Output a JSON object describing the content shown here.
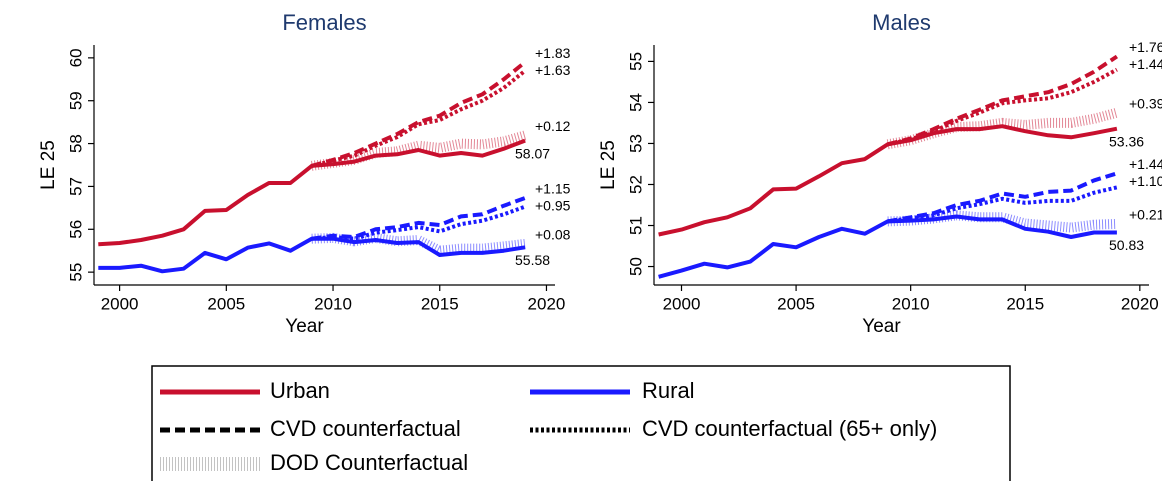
{
  "chart_data": [
    {
      "type": "line",
      "title": "Females",
      "x_label": "Year",
      "y_label": "LE 25",
      "x": [
        1999,
        2000,
        2001,
        2002,
        2003,
        2004,
        2005,
        2006,
        2007,
        2008,
        2009,
        2010,
        2011,
        2012,
        2013,
        2014,
        2015,
        2016,
        2017,
        2018,
        2019
      ],
      "xlim": [
        1998.8,
        2020.4
      ],
      "xticks": [
        2000,
        2005,
        2010,
        2015,
        2020
      ],
      "ylim": [
        54.7,
        60.3
      ],
      "yticks": [
        55,
        56,
        57,
        58,
        59,
        60
      ],
      "series": [
        {
          "color": "#c8102e",
          "dash": "solid",
          "end_value_label": true,
          "values": [
            55.65,
            55.68,
            55.75,
            55.85,
            56.0,
            56.43,
            56.45,
            56.8,
            57.08,
            57.08,
            57.48,
            57.52,
            57.58,
            57.72,
            57.75,
            57.85,
            57.72,
            57.78,
            57.72,
            57.88,
            58.07
          ]
        },
        {
          "color": "#c8102e",
          "dash": "dashed",
          "annotation": "+1.83",
          "values": [
            null,
            null,
            null,
            null,
            null,
            null,
            null,
            null,
            null,
            null,
            57.48,
            57.62,
            57.78,
            58.0,
            58.22,
            58.5,
            58.65,
            58.95,
            59.15,
            59.5,
            59.9
          ]
        },
        {
          "color": "#c8102e",
          "dash": "dotted",
          "annotation": "+1.63",
          "values": [
            null,
            null,
            null,
            null,
            null,
            null,
            null,
            null,
            null,
            null,
            57.48,
            57.6,
            57.72,
            57.95,
            58.15,
            58.45,
            58.55,
            58.8,
            59.0,
            59.3,
            59.7
          ]
        },
        {
          "color": "#c8102e",
          "dash": "hatched",
          "annotation": "+0.12",
          "values": [
            null,
            null,
            null,
            null,
            null,
            null,
            null,
            null,
            null,
            null,
            57.48,
            57.55,
            57.62,
            57.78,
            57.82,
            57.95,
            57.9,
            58.0,
            57.98,
            58.05,
            58.19
          ]
        },
        {
          "color": "#1a1aff",
          "dash": "solid",
          "end_value_label": true,
          "values": [
            55.1,
            55.1,
            55.15,
            55.02,
            55.08,
            55.45,
            55.3,
            55.57,
            55.67,
            55.5,
            55.78,
            55.78,
            55.7,
            55.75,
            55.68,
            55.7,
            55.4,
            55.45,
            55.45,
            55.5,
            55.58
          ]
        },
        {
          "color": "#1a1aff",
          "dash": "dashed",
          "annotation": "+1.15",
          "values": [
            null,
            null,
            null,
            null,
            null,
            null,
            null,
            null,
            null,
            null,
            55.78,
            55.85,
            55.82,
            56.0,
            56.05,
            56.15,
            56.1,
            56.3,
            56.35,
            56.55,
            56.73
          ]
        },
        {
          "color": "#1a1aff",
          "dash": "dotted",
          "annotation": "+0.95",
          "values": [
            null,
            null,
            null,
            null,
            null,
            null,
            null,
            null,
            null,
            null,
            55.78,
            55.82,
            55.78,
            55.92,
            55.98,
            56.05,
            55.95,
            56.12,
            56.2,
            56.35,
            56.53
          ]
        },
        {
          "color": "#1a1aff",
          "dash": "hatched",
          "annotation": "+0.08",
          "values": [
            null,
            null,
            null,
            null,
            null,
            null,
            null,
            null,
            null,
            null,
            55.78,
            55.8,
            55.72,
            55.8,
            55.72,
            55.75,
            55.5,
            55.55,
            55.55,
            55.6,
            55.66
          ]
        }
      ]
    },
    {
      "type": "line",
      "title": "Males",
      "x_label": "Year",
      "y_label": "LE 25",
      "x": [
        1999,
        2000,
        2001,
        2002,
        2003,
        2004,
        2005,
        2006,
        2007,
        2008,
        2009,
        2010,
        2011,
        2012,
        2013,
        2014,
        2015,
        2016,
        2017,
        2018,
        2019
      ],
      "xlim": [
        1998.8,
        2020.4
      ],
      "xticks": [
        2000,
        2005,
        2010,
        2015,
        2020
      ],
      "ylim": [
        49.55,
        55.4
      ],
      "yticks": [
        50,
        51,
        52,
        53,
        54,
        55
      ],
      "series": [
        {
          "color": "#c8102e",
          "dash": "solid",
          "end_value_label": true,
          "values": [
            50.78,
            50.9,
            51.08,
            51.2,
            51.42,
            51.88,
            51.9,
            52.2,
            52.52,
            52.62,
            52.98,
            53.08,
            53.25,
            53.35,
            53.35,
            53.42,
            53.3,
            53.2,
            53.15,
            53.25,
            53.36
          ]
        },
        {
          "color": "#c8102e",
          "dash": "dashed",
          "annotation": "+1.76",
          "values": [
            null,
            null,
            null,
            null,
            null,
            null,
            null,
            null,
            null,
            null,
            52.98,
            53.12,
            53.35,
            53.6,
            53.82,
            54.05,
            54.15,
            54.25,
            54.45,
            54.75,
            55.12
          ]
        },
        {
          "color": "#c8102e",
          "dash": "dotted",
          "annotation": "+1.44",
          "values": [
            null,
            null,
            null,
            null,
            null,
            null,
            null,
            null,
            null,
            null,
            52.98,
            53.1,
            53.3,
            53.55,
            53.75,
            53.98,
            54.05,
            54.1,
            54.25,
            54.5,
            54.8
          ]
        },
        {
          "color": "#c8102e",
          "dash": "hatched",
          "annotation": "+0.39",
          "values": [
            null,
            null,
            null,
            null,
            null,
            null,
            null,
            null,
            null,
            null,
            52.98,
            53.08,
            53.25,
            53.4,
            53.42,
            53.5,
            53.45,
            53.5,
            53.5,
            53.6,
            53.75
          ]
        },
        {
          "color": "#1a1aff",
          "dash": "solid",
          "end_value_label": true,
          "values": [
            49.75,
            49.9,
            50.07,
            49.98,
            50.12,
            50.55,
            50.47,
            50.72,
            50.92,
            50.8,
            51.1,
            51.12,
            51.15,
            51.22,
            51.15,
            51.15,
            50.92,
            50.85,
            50.72,
            50.83,
            50.83
          ]
        },
        {
          "color": "#1a1aff",
          "dash": "dashed",
          "annotation": "+1.44",
          "values": [
            null,
            null,
            null,
            null,
            null,
            null,
            null,
            null,
            null,
            null,
            51.1,
            51.2,
            51.3,
            51.5,
            51.6,
            51.78,
            51.7,
            51.82,
            51.85,
            52.1,
            52.27
          ]
        },
        {
          "color": "#1a1aff",
          "dash": "dotted",
          "annotation": "+1.10",
          "values": [
            null,
            null,
            null,
            null,
            null,
            null,
            null,
            null,
            null,
            null,
            51.1,
            51.18,
            51.25,
            51.42,
            51.52,
            51.65,
            51.55,
            51.6,
            51.6,
            51.8,
            51.93
          ]
        },
        {
          "color": "#1a1aff",
          "dash": "hatched",
          "annotation": "+0.21",
          "values": [
            null,
            null,
            null,
            null,
            null,
            null,
            null,
            null,
            null,
            null,
            51.1,
            51.12,
            51.17,
            51.25,
            51.2,
            51.2,
            51.05,
            51.0,
            50.95,
            51.02,
            51.04
          ]
        }
      ]
    }
  ],
  "legend": [
    {
      "label": "Urban",
      "color": "#c8102e",
      "dash": "solid"
    },
    {
      "label": "Rural",
      "color": "#1a1aff",
      "dash": "solid"
    },
    {
      "label": "CVD counterfactual",
      "color": "#000000",
      "dash": "dashed"
    },
    {
      "label": "CVD counterfactual (65+ only)",
      "color": "#000000",
      "dash": "dotted"
    },
    {
      "label": "DOD Counterfactual",
      "color": "#888888",
      "dash": "hatched"
    }
  ]
}
